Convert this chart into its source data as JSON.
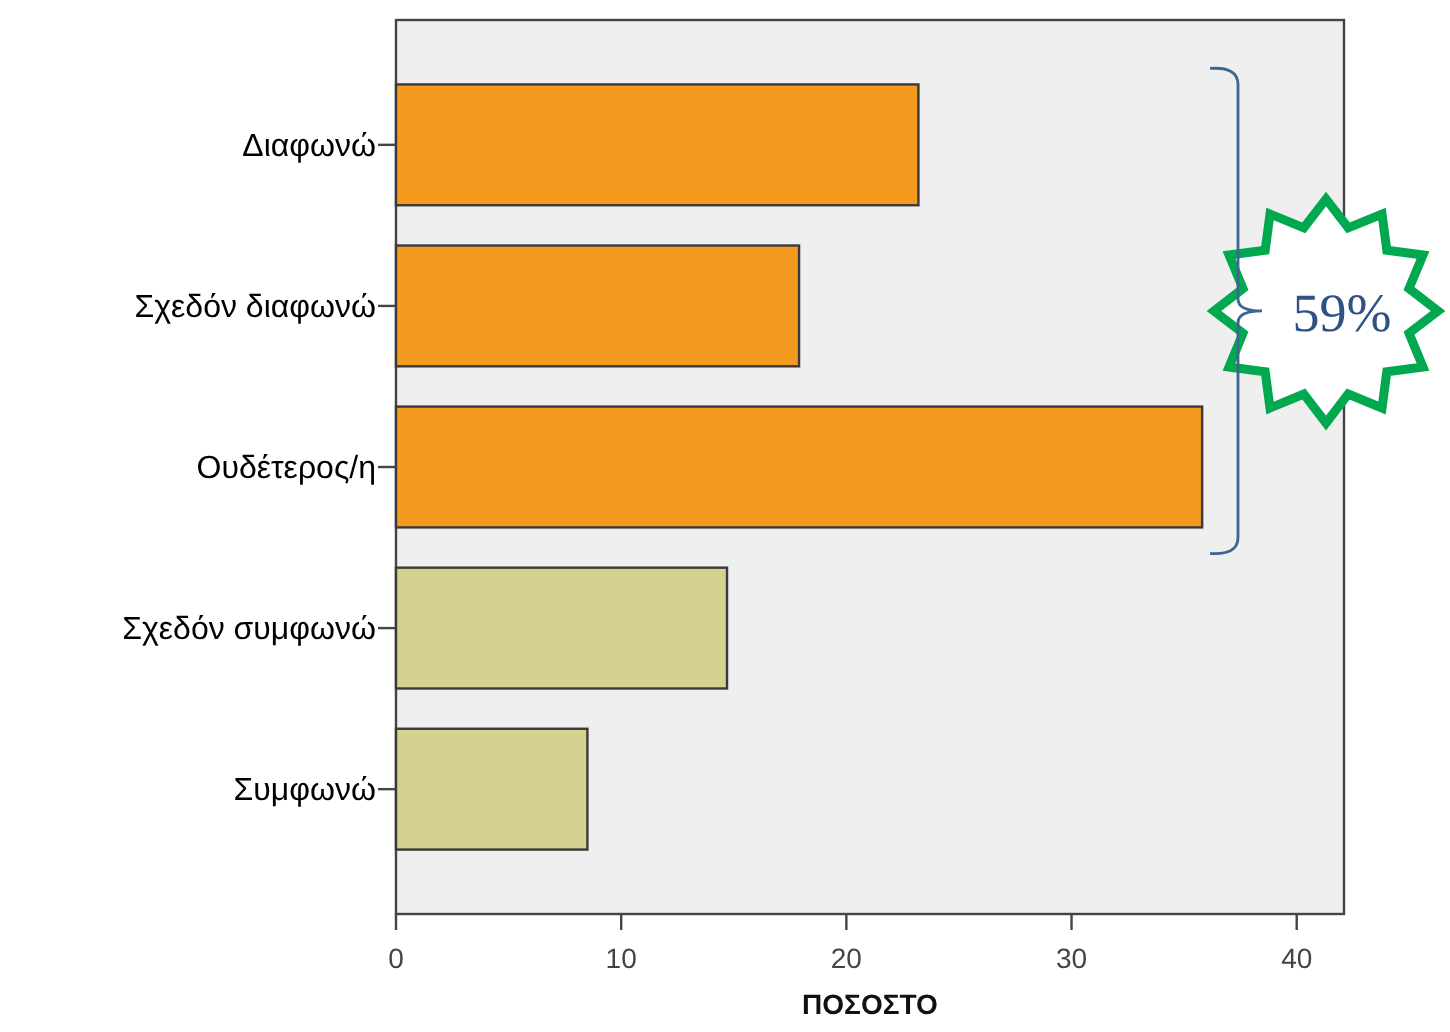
{
  "chart_data": {
    "type": "bar",
    "orientation": "horizontal",
    "categories": [
      "Διαφωνώ",
      "Σχεδόν διαφωνώ",
      "Ουδέτερος/η",
      "Σχεδόν συμφωνώ",
      "Συμφωνώ"
    ],
    "values": [
      23.2,
      17.9,
      35.8,
      14.7,
      8.5
    ],
    "colors": [
      "#f39a1f",
      "#f39a1f",
      "#f39a1f",
      "#d6d18e",
      "#d6d18e"
    ],
    "xlim": [
      0,
      42.1
    ],
    "xticks": [
      0,
      10,
      20,
      30,
      40
    ],
    "xlabel": "ΠΟΣΟΣΤΟ",
    "annotations": [
      "59%"
    ]
  }
}
